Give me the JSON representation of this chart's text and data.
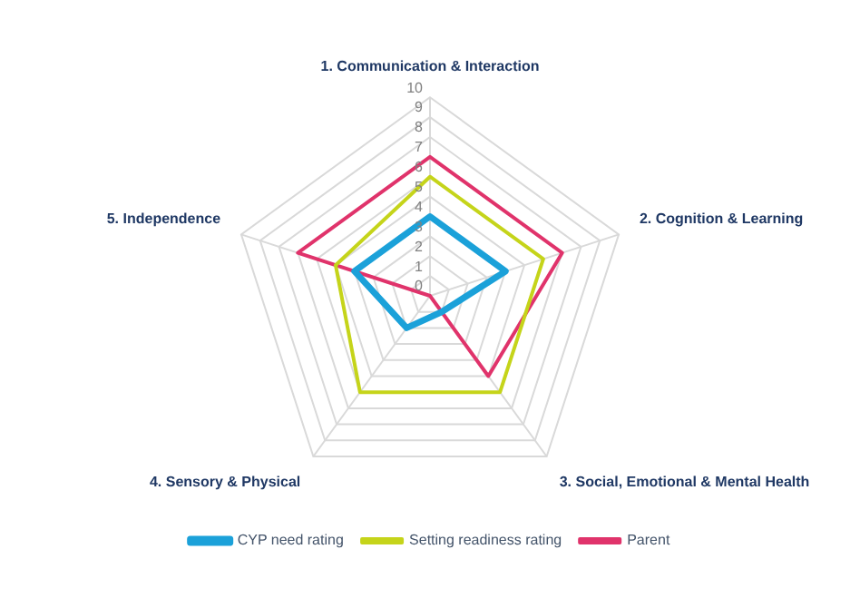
{
  "chart_data": {
    "type": "radar",
    "categories": [
      "1. Communication & Interaction",
      "2. Cognition & Learning",
      "3. Social, Emotional & Mental Health",
      "4. Sensory & Physical",
      "5. Independence"
    ],
    "series": [
      {
        "name": "CYP need rating",
        "color": "#1ba1d9",
        "values": [
          4,
          4,
          1,
          2,
          4
        ]
      },
      {
        "name": "Setting readiness rating",
        "color": "#c5d41a",
        "values": [
          6,
          6,
          6,
          6,
          5
        ]
      },
      {
        "name": "Parent",
        "color": "#e0336b",
        "values": [
          7,
          7,
          5,
          0,
          7
        ]
      }
    ],
    "ylim": [
      0,
      10
    ],
    "yticks": [
      0,
      1,
      2,
      3,
      4,
      5,
      6,
      7,
      8,
      9,
      10
    ],
    "grid": true,
    "legend": "bottom",
    "marker": "none"
  }
}
